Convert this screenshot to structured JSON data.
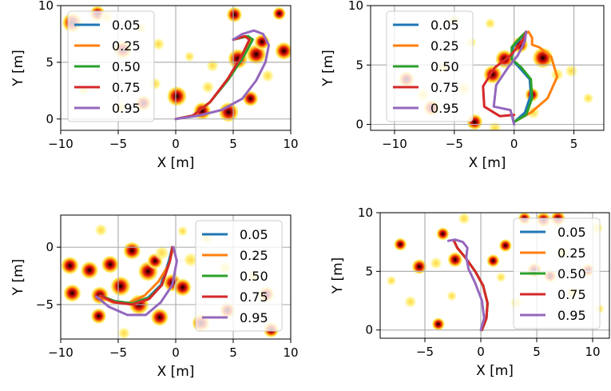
{
  "figure": {
    "colors": {
      "0.05": "#1f77b4",
      "0.25": "#ff7f0e",
      "0.50": "#2ca02c",
      "0.75": "#d62728",
      "0.95": "#9467bd"
    }
  },
  "chart_data": [
    {
      "type": "line",
      "xlabel": "X [m]",
      "ylabel": "Y [m]",
      "xlim": [
        -10,
        10
      ],
      "ylim": [
        -1,
        10
      ],
      "xticks": [
        -10,
        -5,
        0,
        5,
        10
      ],
      "yticks": [
        0,
        5,
        10
      ],
      "x_tick_labels": [
        "−10",
        "−5",
        "0",
        "5",
        "10"
      ],
      "y_tick_labels": [
        "0",
        "5",
        "10"
      ],
      "grid": true,
      "legend_position": "top-left",
      "legend": [
        "0.05",
        "0.25",
        "0.50",
        "0.75",
        "0.95"
      ],
      "background": "heatmap of obstacle density",
      "series": [
        {
          "name": "0.05",
          "x": [
            0,
            1.5,
            3,
            4.5,
            5.8,
            6.6,
            6.2,
            5
          ],
          "y": [
            0,
            0.3,
            1.5,
            3.5,
            5.5,
            7,
            7.3,
            7
          ]
        },
        {
          "name": "0.25",
          "x": [
            0,
            1.5,
            3,
            4.5,
            5.8,
            6.5,
            6.1,
            5
          ],
          "y": [
            0,
            0.3,
            1.5,
            3.5,
            5.5,
            7,
            7.3,
            7
          ]
        },
        {
          "name": "0.50",
          "x": [
            0,
            1.5,
            3,
            4.6,
            5.9,
            6.7,
            6.3,
            5
          ],
          "y": [
            0,
            0.3,
            1.5,
            3.5,
            5.5,
            7,
            7.3,
            7
          ]
        },
        {
          "name": "0.75",
          "x": [
            0,
            1.5,
            3,
            4.5,
            5.7,
            6.4,
            6,
            5
          ],
          "y": [
            0,
            0.3,
            1.5,
            3.5,
            5.5,
            7,
            7.3,
            7
          ]
        },
        {
          "name": "0.95",
          "x": [
            0,
            2,
            4,
            5.8,
            7,
            7.8,
            8.1,
            7.6,
            6.8,
            5.8,
            5
          ],
          "y": [
            0,
            0.3,
            0.8,
            1.8,
            3.4,
            5,
            6.5,
            7.5,
            7.8,
            7.5,
            7
          ]
        }
      ]
    },
    {
      "type": "line",
      "xlabel": "X [m]",
      "ylabel": "Y [m]",
      "xlim": [
        -12,
        7.5
      ],
      "ylim": [
        -0.5,
        10
      ],
      "xticks": [
        -10,
        -5,
        0,
        5
      ],
      "yticks": [
        0,
        5,
        10
      ],
      "x_tick_labels": [
        "−10",
        "−5",
        "0",
        "5"
      ],
      "y_tick_labels": [
        "0",
        "5",
        "10"
      ],
      "grid": true,
      "legend_position": "top-left",
      "legend": [
        "0.05",
        "0.25",
        "0.50",
        "0.75",
        "0.95"
      ],
      "background": "heatmap of obstacle density",
      "series": [
        {
          "name": "0.05",
          "x": [
            0,
            0.9,
            1.4,
            1.3,
            0.6,
            -0.2,
            -0.1,
            0.6,
            1
          ],
          "y": [
            0.2,
            1,
            2.5,
            3.8,
            4.6,
            5.5,
            6.5,
            7.3,
            7.8
          ]
        },
        {
          "name": "0.25",
          "x": [
            0,
            1.4,
            2.8,
            3.6,
            3.1,
            2.1,
            1.5,
            1.5,
            1.2,
            0.8,
            1
          ],
          "y": [
            0.2,
            1,
            2.2,
            4,
            5.7,
            6.5,
            6.7,
            7.3,
            7.8,
            7.5,
            7.8
          ]
        },
        {
          "name": "0.50",
          "x": [
            0,
            1,
            1.5,
            1.4,
            0.6,
            -0.2,
            -0.2,
            0.5,
            1
          ],
          "y": [
            0.2,
            0.8,
            2.2,
            3.8,
            4.8,
            5.5,
            6.5,
            7.3,
            7.8
          ]
        },
        {
          "name": "0.75",
          "x": [
            0,
            -1.2,
            -2.5,
            -2.6,
            -1.6,
            -0.3,
            0.7,
            1
          ],
          "y": [
            0.8,
            0.7,
            1.5,
            3.2,
            4.8,
            5.8,
            7,
            7.8
          ]
        },
        {
          "name": "0.95",
          "x": [
            0,
            -0.3,
            -1.7,
            -1.5,
            -0.5,
            0.3,
            0.9,
            1
          ],
          "y": [
            0,
            1.2,
            1.5,
            3.3,
            4.8,
            5.8,
            7,
            7.8
          ]
        }
      ]
    },
    {
      "type": "line",
      "xlabel": "X [m]",
      "ylabel": "Y [m]",
      "xlim": [
        -10,
        10
      ],
      "ylim": [
        -8,
        2.8
      ],
      "xticks": [
        -10,
        -5,
        0,
        5,
        10
      ],
      "yticks": [
        -5,
        0
      ],
      "x_tick_labels": [
        "−10",
        "−5",
        "0",
        "5",
        "10"
      ],
      "y_tick_labels": [
        "−5",
        "0"
      ],
      "grid": true,
      "legend_position": "top-right",
      "legend": [
        "0.05",
        "0.25",
        "0.50",
        "0.75",
        "0.95"
      ],
      "background": "heatmap of obstacle density",
      "series": [
        {
          "name": "0.05",
          "x": [
            -0.3,
            -0.6,
            -1.3,
            -2.4,
            -3.8,
            -5.3,
            -6.6
          ],
          "y": [
            0,
            -1.2,
            -3.3,
            -4.4,
            -4.9,
            -4.7,
            -4.2
          ]
        },
        {
          "name": "0.25",
          "x": [
            -0.2,
            -0.6,
            -1.5,
            -2.7,
            -4.2,
            -5.5,
            -6.6
          ],
          "y": [
            0,
            -1.5,
            -3,
            -4.2,
            -4.9,
            -4.8,
            -4.3
          ]
        },
        {
          "name": "0.50",
          "x": [
            -0.3,
            -0.5,
            -1.2,
            -2.3,
            -3.8,
            -5.3,
            -6.6
          ],
          "y": [
            0,
            -1.2,
            -3.3,
            -4.4,
            -4.9,
            -4.7,
            -4.2
          ]
        },
        {
          "name": "0.75",
          "x": [
            -0.3,
            -0.5,
            -1.2,
            -2.3,
            -3.8,
            -5.3,
            -6.6
          ],
          "y": [
            0,
            -1.2,
            -3.3,
            -4.5,
            -5,
            -4.8,
            -4.2
          ]
        },
        {
          "name": "0.95",
          "x": [
            -0.2,
            0.1,
            -0.3,
            -1.3,
            -2.6,
            -4.2,
            -5.8,
            -6.9
          ],
          "y": [
            0,
            -1.2,
            -3.3,
            -4.8,
            -5.9,
            -5.9,
            -5.2,
            -4.3
          ]
        }
      ]
    },
    {
      "type": "line",
      "xlabel": "X [m]",
      "ylabel": "Y [m]",
      "xlim": [
        -9,
        11.5
      ],
      "ylim": [
        -0.7,
        10
      ],
      "xticks": [
        -5,
        0,
        5,
        10
      ],
      "yticks": [
        0,
        5,
        10
      ],
      "x_tick_labels": [
        "−5",
        "0",
        "5",
        "10"
      ],
      "y_tick_labels": [
        "0",
        "5",
        "10"
      ],
      "grid": true,
      "legend_position": "top-right",
      "legend": [
        "0.05",
        "0.25",
        "0.50",
        "0.75",
        "0.95"
      ],
      "background": "heatmap of obstacle density",
      "series": [
        {
          "name": "0.05",
          "x": [
            0.1,
            0.5,
            0.6,
            0.2,
            -0.5,
            -1.4,
            -2.1,
            -2.4
          ],
          "y": [
            0,
            1,
            2.3,
            3.8,
            5,
            6.2,
            7,
            7.6
          ]
        },
        {
          "name": "0.25",
          "x": [
            0.1,
            0.5,
            0.6,
            0.2,
            -0.5,
            -1.4,
            -2.1,
            -2.4
          ],
          "y": [
            0,
            1,
            2.3,
            3.8,
            5,
            6.2,
            7,
            7.6
          ]
        },
        {
          "name": "0.50",
          "x": [
            0.1,
            0.5,
            0.6,
            0.2,
            -0.5,
            -1.4,
            -2.1,
            -2.4
          ],
          "y": [
            0,
            1,
            2.3,
            3.8,
            5,
            6.2,
            7,
            7.6
          ]
        },
        {
          "name": "0.75",
          "x": [
            0.1,
            0.5,
            0.6,
            0.2,
            -0.5,
            -1.4,
            -2.1,
            -2.4
          ],
          "y": [
            0,
            1,
            2.3,
            3.8,
            5,
            6.2,
            7,
            7.6
          ]
        },
        {
          "name": "0.95",
          "x": [
            0,
            0.3,
            0.1,
            -0.5,
            -1.1,
            -1.3,
            -1.2,
            -1.6,
            -2.3,
            -2.9
          ],
          "y": [
            0,
            1,
            2.5,
            4,
            5.2,
            6.2,
            7,
            7.5,
            7.7,
            7.6
          ]
        }
      ]
    }
  ]
}
